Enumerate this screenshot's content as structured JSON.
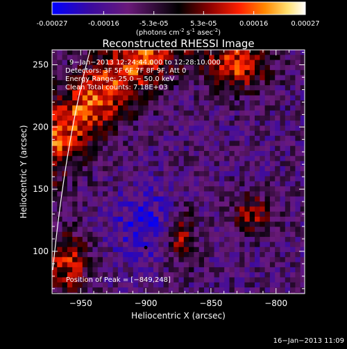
{
  "colorbar": {
    "tick_labels": [
      "-0.00027",
      "-0.00016",
      "-5.3e-05",
      "5.3e-05",
      "0.00016",
      "0.00027"
    ],
    "tick_values": [
      -0.00027,
      -0.00016,
      -5.3e-05,
      5.3e-05,
      0.00016,
      0.00027
    ],
    "range": [
      -0.00027,
      0.00027
    ],
    "unit_main": "(photons cm",
    "unit_sup1": "-2",
    "unit_mid": " s",
    "unit_sup2": "-1",
    "unit_end": " asec",
    "unit_sup3": "-2",
    "unit_close": ")",
    "colors": [
      "#0000ff",
      "#3a0aa0",
      "#6a1a7a",
      "#000000",
      "#8a0000",
      "#ff2000",
      "#ff8800",
      "#ffe070",
      "#ffffff"
    ]
  },
  "chart_data": {
    "type": "heatmap",
    "title": "Reconstructed RHESSI Image",
    "xlabel": "Heliocentric X (arcsec)",
    "ylabel": "Heliocentric Y (arcsec)",
    "xlim": [
      -972,
      -778
    ],
    "ylim": [
      66,
      262
    ],
    "x_ticks": [
      -950,
      -900,
      -850,
      -800
    ],
    "y_ticks": [
      100,
      150,
      200,
      250
    ],
    "x_tick_labels": [
      "−950",
      "−900",
      "−850",
      "−800"
    ],
    "y_tick_labels": [
      "100",
      "150",
      "200",
      "250"
    ],
    "annotations": [
      "9−Jan−2013 12:24:44.000 to 12:28:10.000",
      "Detectors: 3F 5F 6F 7F 8F 9F, Att 0",
      "Energy Range: 25.0 − 50.0 keV",
      "Clean     Total counts: 7.18E+03"
    ],
    "peak_label": "Position of Peak = [−849,248]",
    "peak": [
      -849,
      248
    ],
    "marker": [
      -900,
      103
    ],
    "grid": false
  },
  "timestamp": "16−Jan−2013 11:09"
}
